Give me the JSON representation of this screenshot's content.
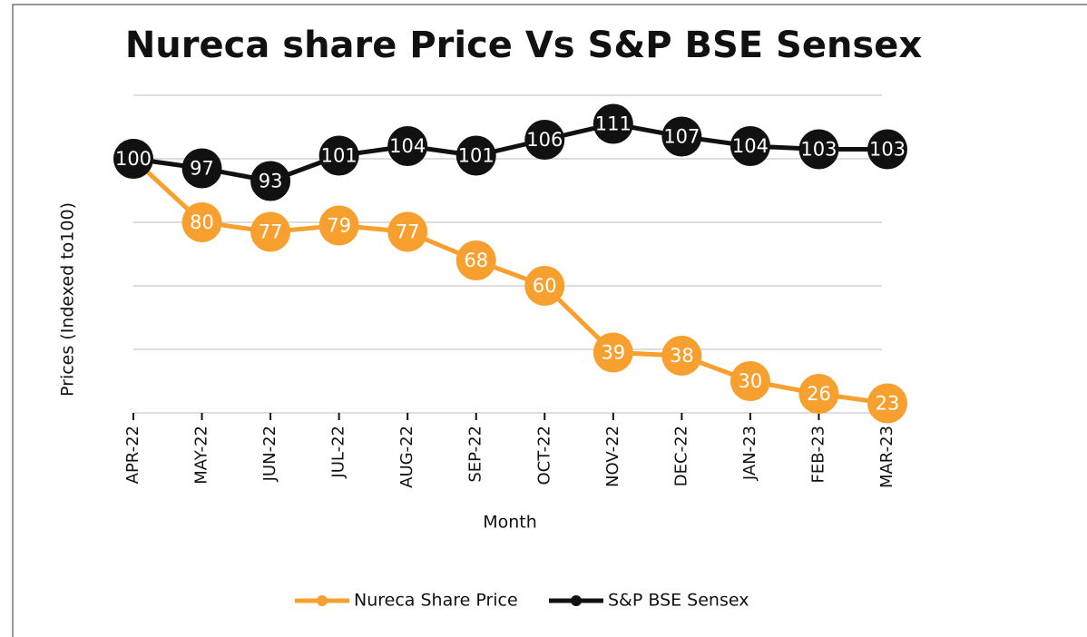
{
  "chart_data": {
    "type": "line",
    "title": "Nureca share Price Vs S&P BSE Sensex",
    "x_label": "Month",
    "y_label": "Prices (Indexed to100)",
    "categories": [
      "APR-22",
      "MAY-22",
      "JUN-22",
      "JUL-22",
      "AUG-22",
      "SEP-22",
      "OCT-22",
      "NOV-22",
      "DEC-22",
      "JAN-23",
      "FEB-23",
      "MAR-23"
    ],
    "series": [
      {
        "name": "Nureca Share Price",
        "color": "#f7a030",
        "values": [
          100,
          80,
          77,
          79,
          77,
          68,
          60,
          39,
          38,
          30,
          26,
          23
        ]
      },
      {
        "name": "S&P BSE Sensex",
        "color": "#111111",
        "values": [
          100,
          97,
          93,
          101,
          104,
          101,
          106,
          111,
          107,
          104,
          103,
          103
        ]
      }
    ],
    "ylim": [
      20,
      120
    ],
    "yticks": [
      20,
      40,
      60,
      80,
      100,
      120
    ],
    "grid": true,
    "legend": "bottom"
  }
}
